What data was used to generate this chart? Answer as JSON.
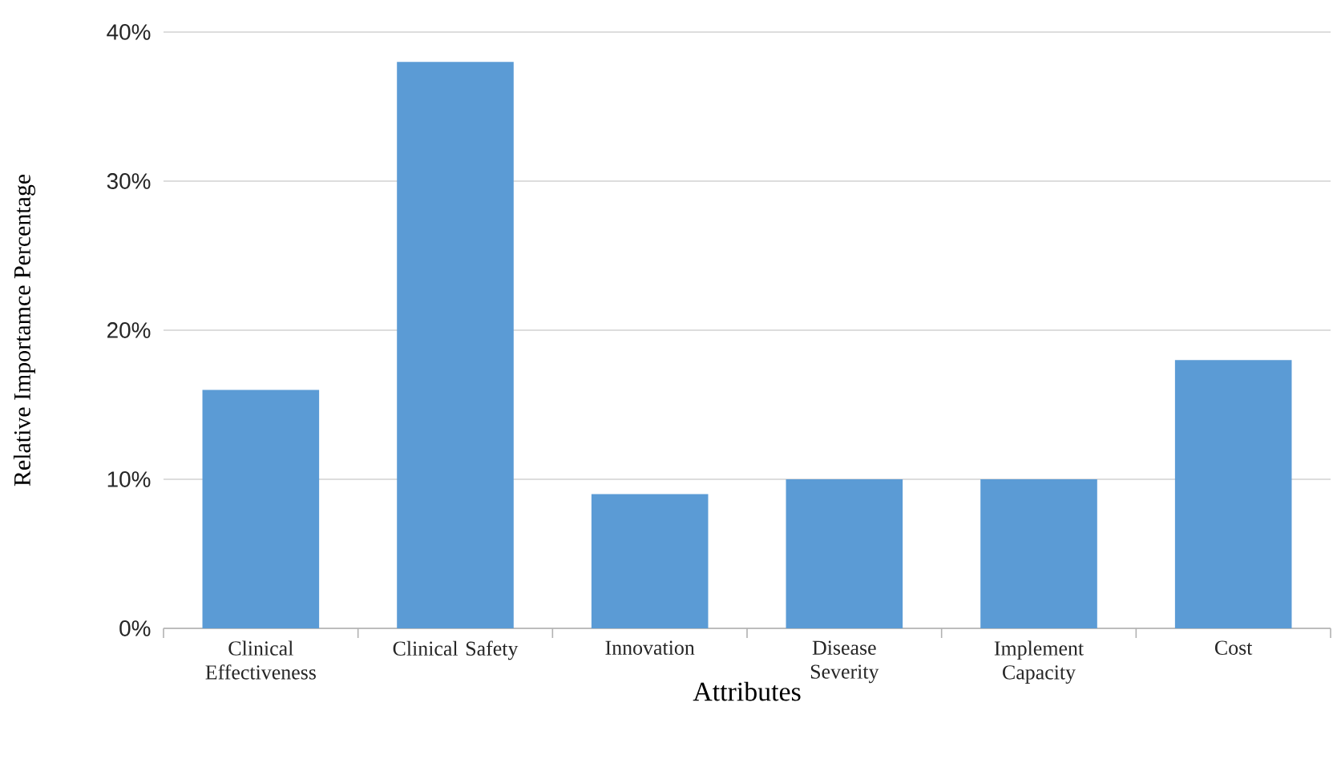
{
  "chart_data": {
    "type": "bar",
    "xlabel": "Attributes",
    "ylabel": "Relative Importamce Percentage",
    "categories": [
      "Clinical Effectiveness",
      "Clinical Safety",
      "Innovation",
      "Disease Severity",
      "Implement Capacity",
      "Cost"
    ],
    "values": [
      16,
      38,
      9,
      10,
      10,
      18
    ],
    "color": "#5b9bd5",
    "ylim": [
      0,
      40
    ],
    "yticks": [
      {
        "value": 0,
        "label": "0%"
      },
      {
        "value": 10,
        "label": "10%"
      },
      {
        "value": 20,
        "label": "20%"
      },
      {
        "value": 30,
        "label": "30%"
      },
      {
        "value": 40,
        "label": "40%"
      }
    ],
    "grid": "y"
  }
}
